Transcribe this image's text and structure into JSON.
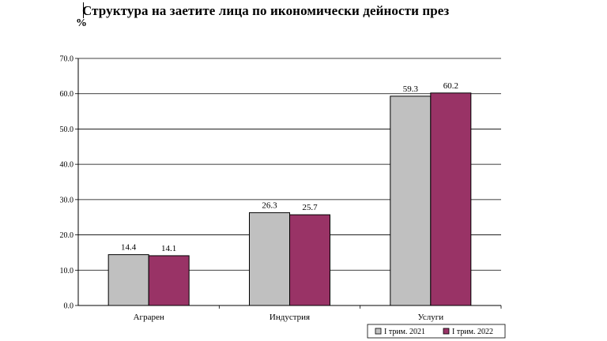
{
  "title": "Структура на заетите лица по икономически дейности през",
  "unit": "%",
  "colors": {
    "series_2021": "#c0c0c0",
    "series_2022": "#993366",
    "grid": "#000000"
  },
  "chart_data": {
    "type": "bar",
    "title": "Структура на заетите лица по икономически дейности през",
    "ylabel": "%",
    "xlabel": "",
    "categories": [
      "Аграрен",
      "Индустрия",
      "Услуги"
    ],
    "series": [
      {
        "name": "I трим. 2021",
        "values": [
          14.4,
          26.3,
          59.3
        ]
      },
      {
        "name": "I трим. 2022",
        "values": [
          14.1,
          25.7,
          60.2
        ]
      }
    ],
    "value_labels": [
      [
        "14.4",
        "26.3",
        "59.3"
      ],
      [
        "14.1",
        "25.7",
        "60.2"
      ]
    ],
    "ylim": [
      0,
      70
    ],
    "yticks": [
      "0.0",
      "10.0",
      "20.0",
      "30.0",
      "40.0",
      "50.0",
      "60.0",
      "70.0"
    ],
    "grid": true,
    "legend_position": "bottom-right"
  }
}
